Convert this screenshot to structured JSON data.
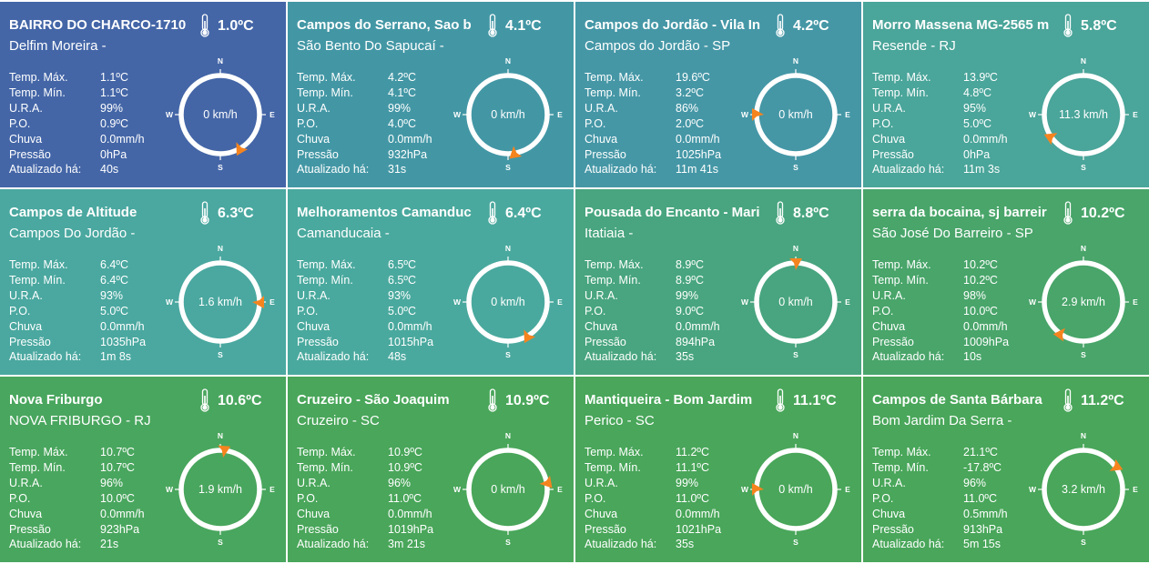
{
  "labels": {
    "temp_max": "Temp. Máx.",
    "temp_min": "Temp. Mín.",
    "ura": "U.R.A.",
    "po": "P.O.",
    "chuva": "Chuva",
    "pressao": "Pressão",
    "atualizado": "Atualizado há:"
  },
  "compass_labels": {
    "n": "N",
    "e": "E",
    "s": "S",
    "w": "W"
  },
  "icons": {
    "temperature": "thermometer-icon",
    "wind_direction": "wind-direction-arrow-icon"
  },
  "colors": {
    "arrow": "#f5841f",
    "text": "#ffffff"
  },
  "stations": [
    {
      "name": "BAIRRO DO CHARCO-1710",
      "temp": "1.0ºC",
      "location": "Delfim Moreira -",
      "temp_max": "1.1ºC",
      "temp_min": "1.1ºC",
      "ura": "99%",
      "po": "0.9ºC",
      "chuva": "0.0mm/h",
      "pressao": "0hPa",
      "atualizado": "40s",
      "wind": "0 km/h",
      "wind_dir_deg": 150,
      "bg": "#4466a7"
    },
    {
      "name": "Campos do Serrano, Sao b",
      "temp": "4.1ºC",
      "location": "São Bento Do Sapucaí -",
      "temp_max": "4.2ºC",
      "temp_min": "4.1ºC",
      "ura": "99%",
      "po": "4.0ºC",
      "chuva": "0.0mm/h",
      "pressao": "932hPa",
      "atualizado": "31s",
      "wind": "0 km/h",
      "wind_dir_deg": 170,
      "bg": "#4397a5"
    },
    {
      "name": "Campos do Jordão - Vila In",
      "temp": "4.2ºC",
      "location": "Campos do Jordão - SP",
      "temp_max": "19.6ºC",
      "temp_min": "3.2ºC",
      "ura": "86%",
      "po": "2.0ºC",
      "chuva": "0.0mm/h",
      "pressao": "1025hPa",
      "atualizado": "11m 41s",
      "wind": "0 km/h",
      "wind_dir_deg": 270,
      "bg": "#4597a6"
    },
    {
      "name": "Morro Massena MG-2565 m",
      "temp": "5.8ºC",
      "location": "Resende - RJ",
      "temp_max": "13.9ºC",
      "temp_min": "4.8ºC",
      "ura": "95%",
      "po": "5.0ºC",
      "chuva": "0.0mm/h",
      "pressao": "0hPa",
      "atualizado": "11m 3s",
      "wind": "11.3 km/h",
      "wind_dir_deg": 235,
      "bg": "#4aa59a"
    },
    {
      "name": "Campos de Altitude",
      "temp": "6.3ºC",
      "location": "Campos Do Jordão -",
      "temp_max": "6.4ºC",
      "temp_min": "6.4ºC",
      "ura": "93%",
      "po": "5.0ºC",
      "chuva": "0.0mm/h",
      "pressao": "1035hPa",
      "atualizado": "1m 8s",
      "wind": "1.6 km/h",
      "wind_dir_deg": 90,
      "bg": "#4aa8a0"
    },
    {
      "name": "Melhoramentos Camanduc",
      "temp": "6.4ºC",
      "location": "Camanducaia -",
      "temp_max": "6.5ºC",
      "temp_min": "6.5ºC",
      "ura": "93%",
      "po": "5.0ºC",
      "chuva": "0.0mm/h",
      "pressao": "1015hPa",
      "atualizado": "48s",
      "wind": "0 km/h",
      "wind_dir_deg": 150,
      "bg": "#4aa99e"
    },
    {
      "name": "Pousada do Encanto - Mari",
      "temp": "8.8ºC",
      "location": "Itatiaia -",
      "temp_max": "8.9ºC",
      "temp_min": "8.9ºC",
      "ura": "99%",
      "po": "9.0ºC",
      "chuva": "0.0mm/h",
      "pressao": "894hPa",
      "atualizado": "35s",
      "wind": "0 km/h",
      "wind_dir_deg": 0,
      "bg": "#48a57f"
    },
    {
      "name": "serra da bocaina, sj barreir",
      "temp": "10.2ºC",
      "location": "São José Do Barreiro - SP",
      "temp_max": "10.2ºC",
      "temp_min": "10.2ºC",
      "ura": "98%",
      "po": "10.0ºC",
      "chuva": "0.0mm/h",
      "pressao": "1009hPa",
      "atualizado": "10s",
      "wind": "2.9 km/h",
      "wind_dir_deg": 215,
      "bg": "#49a56a"
    },
    {
      "name": "Nova Friburgo",
      "temp": "10.6ºC",
      "location": "NOVA FRIBURGO - RJ",
      "temp_max": "10.7ºC",
      "temp_min": "10.7ºC",
      "ura": "96%",
      "po": "10.0ºC",
      "chuva": "0.0mm/h",
      "pressao": "923hPa",
      "atualizado": "21s",
      "wind": "1.9 km/h",
      "wind_dir_deg": 5,
      "bg": "#49a65e"
    },
    {
      "name": "Cruzeiro - São Joaquim",
      "temp": "10.9ºC",
      "location": "Cruzeiro - SC",
      "temp_max": "10.9ºC",
      "temp_min": "10.9ºC",
      "ura": "96%",
      "po": "11.0ºC",
      "chuva": "0.0mm/h",
      "pressao": "1019hPa",
      "atualizado": "3m 21s",
      "wind": "0 km/h",
      "wind_dir_deg": 80,
      "bg": "#49a65a"
    },
    {
      "name": "Mantiqueira - Bom Jardim",
      "temp": "11.1ºC",
      "location": "Perico - SC",
      "temp_max": "11.2ºC",
      "temp_min": "11.1ºC",
      "ura": "99%",
      "po": "11.0ºC",
      "chuva": "0.0mm/h",
      "pressao": "1021hPa",
      "atualizado": "35s",
      "wind": "0 km/h",
      "wind_dir_deg": 270,
      "bg": "#49a65a"
    },
    {
      "name": "Campos de Santa Bárbara",
      "temp": "11.2ºC",
      "location": "Bom Jardim Da Serra -",
      "temp_max": "21.1ºC",
      "temp_min": "-17.8ºC",
      "ura": "96%",
      "po": "11.0ºC",
      "chuva": "0.5mm/h",
      "pressao": "913hPa",
      "atualizado": "5m 15s",
      "wind": "3.2 km/h",
      "wind_dir_deg": 55,
      "bg": "#49a65a"
    }
  ]
}
